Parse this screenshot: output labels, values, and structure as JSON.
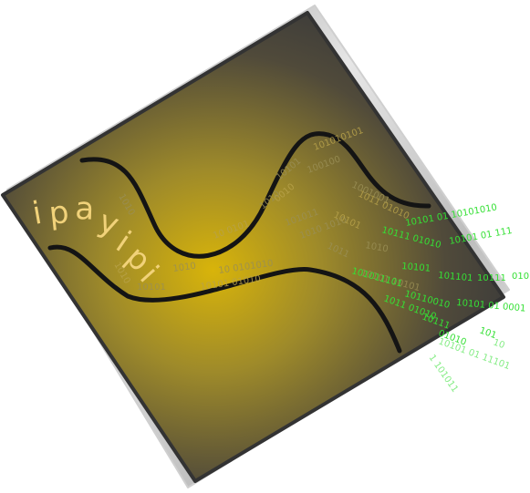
{
  "logo": {
    "wordmark": "ipayipi",
    "wordmark_color": "#f1d27a",
    "tile_dark": "#3d3d3d",
    "glow_color": "#d8b40a",
    "frame_light": "#d9d9d9",
    "binary_color": "#35e035",
    "binary_on_tile": [
      "101010101",
      "100100",
      "10101",
      "0010",
      "1010",
      "1001001",
      "1011 01010",
      "101011",
      "1010 1010",
      "10 0101",
      "1010",
      "10 0101010",
      "10101 01010",
      "1010",
      "1011",
      "10101",
      "1010",
      "10101 10101",
      "1010",
      "10101"
    ],
    "binary_stream": [
      "10101 01 10101010",
      "10111 01010",
      "10101 01 111",
      "10101",
      "101101",
      "10111",
      "010",
      "101011101",
      "10110010",
      "10101 01 0001",
      "1011 01010",
      "10111",
      "01010",
      "101",
      "10101 01 11101",
      "1 101011",
      "10"
    ]
  }
}
